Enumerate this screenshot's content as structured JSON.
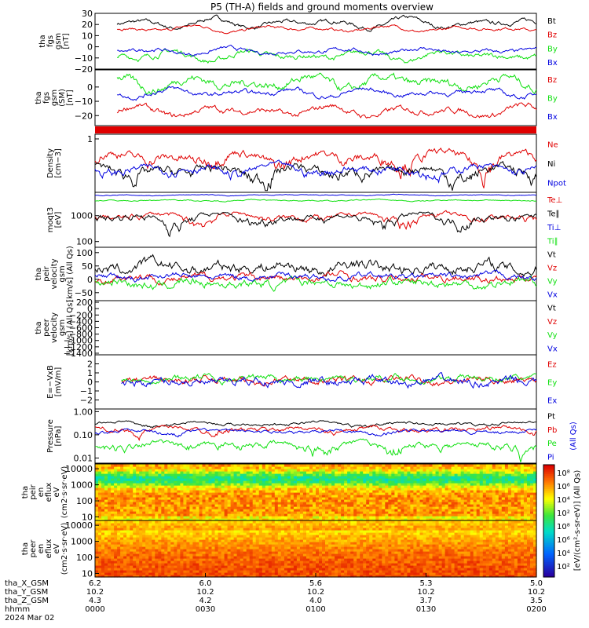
{
  "title": "P5 (TH-A) fields and ground moments overview",
  "colors": {
    "black": "#000000",
    "red": "#e00000",
    "green": "#10e010",
    "blue": "#0000e0"
  },
  "chart_data": {
    "type": "line",
    "panels": [
      {
        "id": "fgs_gsm",
        "ylabel": [
          "tha",
          "fgs",
          "gsm",
          "[nT]"
        ],
        "ylim": [
          -20,
          30
        ],
        "ticks": [
          "30",
          "20",
          "10",
          "0",
          "−10",
          "−20"
        ],
        "tick_values": [
          30,
          20,
          10,
          0,
          -10,
          -20
        ],
        "series": [
          {
            "name": "Bt",
            "color": "black",
            "base": 21,
            "amp": 5,
            "noise": 2.2,
            "start": 0.05
          },
          {
            "name": "Bz",
            "color": "red",
            "base": 16,
            "amp": 3,
            "noise": 1.5,
            "start": 0.05
          },
          {
            "name": "By",
            "color": "green",
            "base": -8,
            "amp": 5,
            "noise": 3.0,
            "start": 0.05
          },
          {
            "name": "Bx",
            "color": "blue",
            "base": -4,
            "amp": 3,
            "noise": 2.0,
            "start": 0.05
          }
        ]
      },
      {
        "id": "fgs_gsm_sm",
        "ylabel": [
          "tha",
          "fgs",
          "gsm",
          "(SM)",
          "[nT]"
        ],
        "ylim": [
          -27,
          12
        ],
        "ticks": [
          "0",
          "−10",
          "−20"
        ],
        "tick_values": [
          0,
          -10,
          -20
        ],
        "series": [
          {
            "name": "Bz",
            "color": "red",
            "base": -17,
            "amp": 4,
            "noise": 2.5,
            "start": 0.05
          },
          {
            "name": "By",
            "color": "green",
            "base": 3,
            "amp": 5,
            "noise": 3.5,
            "start": 0.05
          },
          {
            "name": "Bx",
            "color": "blue",
            "base": -4,
            "amp": 3,
            "noise": 2.0,
            "start": 0.05
          }
        ]
      },
      {
        "id": "density",
        "ylabel": [
          "Density",
          "[cm−3]"
        ],
        "ylim": [
          0.05,
          1.3
        ],
        "log": true,
        "ticks": [
          "1"
        ],
        "tick_values": [
          1
        ],
        "series": [
          {
            "name": "Ne",
            "color": "red",
            "base": 0.35,
            "amp": 0.15,
            "noise": 0.12,
            "start": 0.0
          },
          {
            "name": "Ni",
            "color": "black",
            "base": 0.16,
            "amp": 0.06,
            "noise": 0.06,
            "start": 0.0
          },
          {
            "name": "Npot",
            "color": "blue",
            "base": 0.18,
            "amp": 0.05,
            "noise": 0.05,
            "start": 0.0
          }
        ]
      },
      {
        "id": "temperature",
        "ylabel": [
          "moqt3",
          "[eV]"
        ],
        "ylim": [
          60,
          8000
        ],
        "log": true,
        "ticks": [
          "1000",
          "100"
        ],
        "tick_values": [
          1000,
          100
        ],
        "series": [
          {
            "name": "Te⊥",
            "color": "red",
            "base": 900,
            "amp": 400,
            "noise": 300,
            "start": 0.0
          },
          {
            "name": "Te∥",
            "color": "black",
            "base": 800,
            "amp": 400,
            "noise": 300,
            "start": 0.0
          },
          {
            "name": "Ti⊥",
            "color": "blue",
            "base": 6200,
            "amp": 300,
            "noise": 300,
            "start": 0.0
          },
          {
            "name": "Ti∥",
            "color": "green",
            "base": 3900,
            "amp": 300,
            "noise": 250,
            "start": 0.0
          }
        ]
      },
      {
        "id": "peir_velocity",
        "ylabel": [
          "tha",
          "peir",
          "velocity",
          "gsm",
          "[km/s] (All Qs)"
        ],
        "ylim": [
          -80,
          120
        ],
        "ticks": [
          "100",
          "50",
          "0",
          "−50"
        ],
        "tick_values": [
          100,
          50,
          0,
          -50
        ],
        "series": [
          {
            "name": "Vt",
            "color": "black",
            "base": 45,
            "amp": 15,
            "noise": 25,
            "start": 0.0
          },
          {
            "name": "Vz",
            "color": "red",
            "base": 5,
            "amp": 10,
            "noise": 18,
            "start": 0.0
          },
          {
            "name": "Vy",
            "color": "green",
            "base": -15,
            "amp": 12,
            "noise": 20,
            "start": 0.0
          },
          {
            "name": "Vx",
            "color": "blue",
            "base": 10,
            "amp": 8,
            "noise": 14,
            "start": 0.0
          }
        ]
      },
      {
        "id": "peer_velocity",
        "ylabel": [
          "tha",
          "peer",
          "velocity",
          "gsm",
          "[km/s] (All Qs)"
        ],
        "ylim": [
          -1450,
          250
        ],
        "ticks": [
          "200",
          "0",
          "−200",
          "−400",
          "−600",
          "−800",
          "−1000",
          "−1200",
          "−1400"
        ],
        "tick_values": [
          200,
          0,
          -200,
          -400,
          -600,
          -800,
          -1000,
          -1200,
          -1400
        ],
        "series": [
          {
            "name": "Vt",
            "color": "black"
          },
          {
            "name": "Vz",
            "color": "red"
          },
          {
            "name": "Vy",
            "color": "green"
          },
          {
            "name": "Vx",
            "color": "blue"
          }
        ]
      },
      {
        "id": "e_field",
        "ylabel": [
          "E=−VxB",
          "[mV/m]"
        ],
        "ylim": [
          -3,
          3
        ],
        "ticks": [
          "2",
          "1",
          "0",
          "−1",
          "−2"
        ],
        "tick_values": [
          2,
          1,
          0,
          -1,
          -2
        ],
        "series": [
          {
            "name": "Ez",
            "color": "red",
            "base": 0.2,
            "amp": 0.2,
            "noise": 0.45,
            "start": 0.06
          },
          {
            "name": "Ey",
            "color": "green",
            "base": 0.4,
            "amp": 0.2,
            "noise": 0.45,
            "start": 0.06
          },
          {
            "name": "Ex",
            "color": "blue",
            "base": 0,
            "amp": 0.2,
            "noise": 0.55,
            "start": 0.06
          }
        ]
      },
      {
        "id": "pressure",
        "ylabel": [
          "Pressure",
          "[nPa]"
        ],
        "ylim": [
          0.006,
          1.3
        ],
        "log": true,
        "ticks": [
          "1.00",
          "0.10",
          "0.01"
        ],
        "tick_values": [
          1,
          0.1,
          0.01
        ],
        "extra_label": "(All Qs)",
        "series": [
          {
            "name": "Pt",
            "color": "black",
            "base": 0.3,
            "amp": 0.08,
            "noise": 0.05,
            "start": 0.0
          },
          {
            "name": "Pb",
            "color": "red",
            "base": 0.17,
            "amp": 0.05,
            "noise": 0.05,
            "start": 0.0
          },
          {
            "name": "Pe",
            "color": "green",
            "base": 0.035,
            "amp": 0.015,
            "noise": 0.015,
            "start": 0.0
          },
          {
            "name": "Pi",
            "color": "blue",
            "base": 0.14,
            "amp": 0.03,
            "noise": 0.03,
            "start": 0.0
          }
        ]
      }
    ],
    "spectrograms": [
      {
        "id": "peir_en_eflux",
        "ylabel": [
          "tha",
          "peir",
          "en",
          "eflux",
          "eV",
          "(cm2·s·sr·eV)"
        ],
        "ylim": [
          6,
          20000
        ],
        "ticks": [
          "10000",
          "1000",
          "100",
          "10"
        ],
        "tick_values": [
          10000,
          1000,
          100,
          10
        ]
      },
      {
        "id": "peer_en_eflux",
        "ylabel": [
          "tha",
          "peer",
          "en",
          "eflux",
          "eV",
          "(cm2·s·sr·eV)"
        ],
        "ylim": [
          6,
          20000
        ],
        "ticks": [
          "10000",
          "1000",
          "100",
          "10"
        ],
        "tick_values": [
          10000,
          1000,
          100,
          10
        ]
      }
    ],
    "colorbar": {
      "ticks": [
        "10⁸",
        "10⁶",
        "10⁴",
        "10²",
        "10⁸",
        "10⁶",
        "10⁴",
        "10²"
      ],
      "label": "[eV/(cm²-s-sr-eV)] (All Qs)"
    },
    "x_axis": {
      "rows": [
        {
          "name": "tha_X_GSM",
          "values": [
            "6.2",
            "6.0",
            "5.6",
            "5.3",
            "5.0"
          ]
        },
        {
          "name": "tha_Y_GSM",
          "values": [
            "10.2",
            "10.2",
            "10.2",
            "10.2",
            "10.2"
          ]
        },
        {
          "name": "tha_Z_GSM",
          "values": [
            "4.3",
            "4.2",
            "4.0",
            "3.7",
            "3.5"
          ]
        },
        {
          "name": "hhmm",
          "values": [
            "0000",
            "0030",
            "0100",
            "0130",
            "0200"
          ]
        }
      ],
      "date": "2024 Mar 02"
    }
  }
}
